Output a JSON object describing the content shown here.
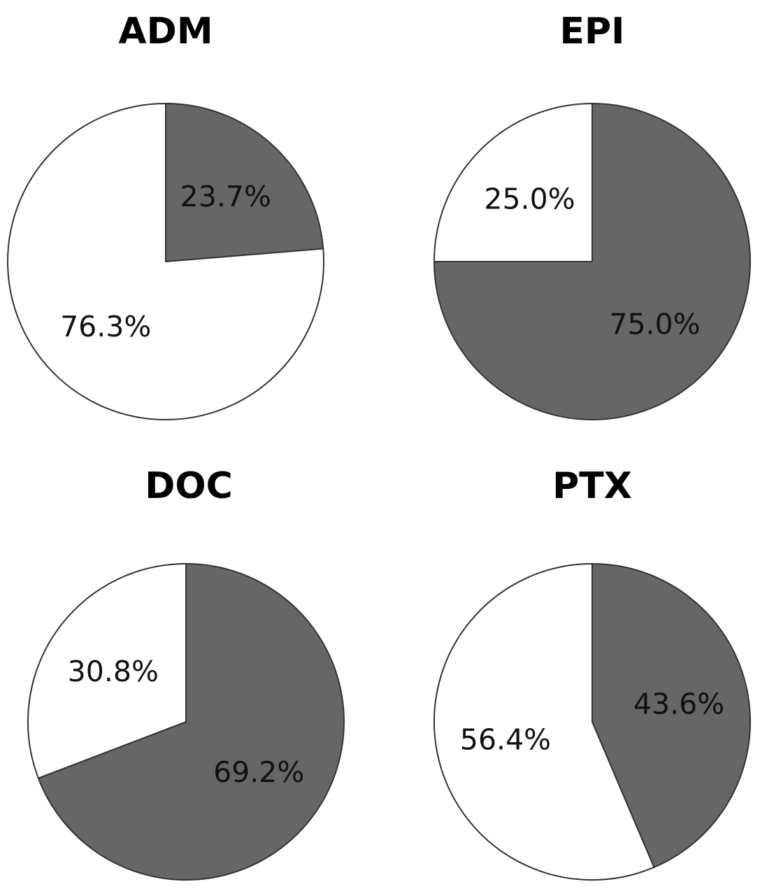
{
  "chart_data": [
    {
      "type": "pie",
      "title": "ADM",
      "slices": [
        {
          "value": 23.7,
          "label": "23.7%",
          "color": "#666666"
        },
        {
          "value": 76.3,
          "label": "76.3%",
          "color": "#ffffff"
        }
      ]
    },
    {
      "type": "pie",
      "title": "EPI",
      "slices": [
        {
          "value": 75.0,
          "label": "75.0%",
          "color": "#666666"
        },
        {
          "value": 25.0,
          "label": "25.0%",
          "color": "#ffffff"
        }
      ]
    },
    {
      "type": "pie",
      "title": "DOC",
      "slices": [
        {
          "value": 69.2,
          "label": "69.2%",
          "color": "#666666"
        },
        {
          "value": 30.8,
          "label": "30.8%",
          "color": "#ffffff"
        }
      ]
    },
    {
      "type": "pie",
      "title": "PTX",
      "slices": [
        {
          "value": 43.6,
          "label": "43.6%",
          "color": "#666666"
        },
        {
          "value": 56.4,
          "label": "56.4%",
          "color": "#ffffff"
        }
      ]
    }
  ]
}
